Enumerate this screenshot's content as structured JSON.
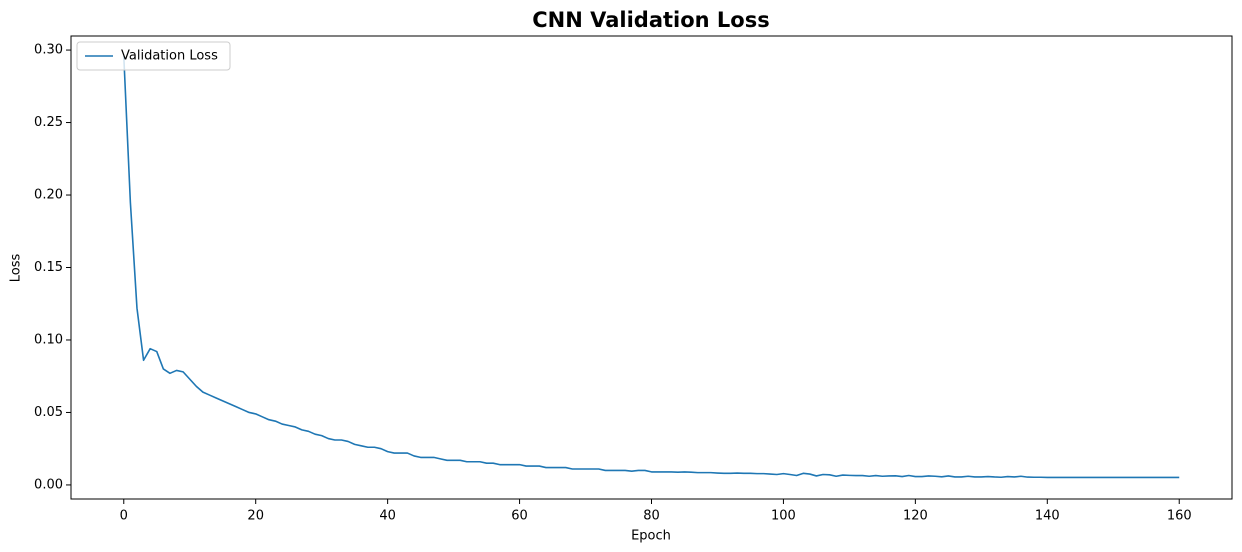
{
  "chart_data": {
    "type": "line",
    "title": "CNN Validation Loss",
    "x_label": "Epoch",
    "y_label": "Loss",
    "x": [
      0,
      1,
      2,
      3,
      4,
      5,
      6,
      7,
      8,
      9,
      10,
      11,
      12,
      13,
      14,
      15,
      16,
      17,
      18,
      19,
      20,
      21,
      22,
      23,
      24,
      25,
      26,
      27,
      28,
      29,
      30,
      31,
      32,
      33,
      34,
      35,
      36,
      37,
      38,
      39,
      40,
      41,
      42,
      43,
      44,
      45,
      46,
      47,
      48,
      49,
      50,
      51,
      52,
      53,
      54,
      55,
      56,
      57,
      58,
      59,
      60,
      61,
      62,
      63,
      64,
      65,
      66,
      67,
      68,
      69,
      70,
      71,
      72,
      73,
      74,
      75,
      76,
      77,
      78,
      79,
      80,
      81,
      82,
      83,
      84,
      85,
      86,
      87,
      88,
      89,
      90,
      91,
      92,
      93,
      94,
      95,
      96,
      97,
      98,
      99,
      100,
      101,
      102,
      103,
      104,
      105,
      106,
      107,
      108,
      109,
      110,
      111,
      112,
      113,
      114,
      115,
      116,
      117,
      118,
      119,
      120,
      121,
      122,
      123,
      124,
      125,
      126,
      127,
      128,
      129,
      130,
      131,
      132,
      133,
      134,
      135,
      136,
      137,
      138,
      139,
      140,
      141,
      142,
      143,
      144,
      145,
      146,
      147,
      148,
      149,
      150,
      151,
      152,
      153,
      154,
      155,
      156,
      157,
      158,
      159,
      160
    ],
    "series": [
      {
        "name": "Validation Loss",
        "color": "#1f77b4",
        "values": [
          0.296,
          0.195,
          0.122,
          0.086,
          0.094,
          0.092,
          0.08,
          0.077,
          0.079,
          0.078,
          0.073,
          0.068,
          0.064,
          0.062,
          0.06,
          0.058,
          0.056,
          0.054,
          0.052,
          0.05,
          0.049,
          0.047,
          0.045,
          0.044,
          0.042,
          0.041,
          0.04,
          0.038,
          0.037,
          0.035,
          0.034,
          0.032,
          0.031,
          0.031,
          0.03,
          0.028,
          0.027,
          0.026,
          0.026,
          0.025,
          0.023,
          0.022,
          0.022,
          0.022,
          0.02,
          0.019,
          0.019,
          0.019,
          0.018,
          0.017,
          0.017,
          0.017,
          0.016,
          0.016,
          0.016,
          0.015,
          0.015,
          0.014,
          0.014,
          0.014,
          0.014,
          0.013,
          0.013,
          0.013,
          0.012,
          0.012,
          0.012,
          0.012,
          0.011,
          0.011,
          0.011,
          0.011,
          0.011,
          0.01,
          0.01,
          0.01,
          0.01,
          0.0095,
          0.01,
          0.01,
          0.009,
          0.009,
          0.009,
          0.009,
          0.0088,
          0.009,
          0.0088,
          0.0085,
          0.0085,
          0.0085,
          0.0082,
          0.008,
          0.008,
          0.0082,
          0.008,
          0.008,
          0.0078,
          0.0078,
          0.0075,
          0.0072,
          0.0078,
          0.0072,
          0.0065,
          0.008,
          0.0075,
          0.0062,
          0.0072,
          0.007,
          0.006,
          0.0068,
          0.0066,
          0.0065,
          0.0065,
          0.006,
          0.0065,
          0.006,
          0.0062,
          0.0063,
          0.0058,
          0.0065,
          0.0058,
          0.0058,
          0.0062,
          0.006,
          0.0056,
          0.0062,
          0.0055,
          0.0055,
          0.006,
          0.0055,
          0.0055,
          0.0058,
          0.0055,
          0.0053,
          0.0058,
          0.0055,
          0.006,
          0.0054,
          0.0053,
          0.0053,
          0.0052,
          0.0052,
          0.0052,
          0.0052,
          0.0052,
          0.0052,
          0.0052,
          0.0052,
          0.0052,
          0.0052,
          0.0052,
          0.0052,
          0.0052,
          0.0052,
          0.0052,
          0.0052,
          0.0052,
          0.0052,
          0.0052,
          0.0052,
          0.0052
        ]
      }
    ],
    "xlim": [
      -8,
      168
    ],
    "ylim": [
      -0.0097,
      0.3097
    ],
    "xticks": [
      0,
      20,
      40,
      60,
      80,
      100,
      120,
      140,
      160
    ],
    "yticks": [
      {
        "value": 0,
        "label": "0.00"
      },
      {
        "value": 0.05,
        "label": "0.05"
      },
      {
        "value": 0.1,
        "label": "0.10"
      },
      {
        "value": 0.15,
        "label": "0.15"
      },
      {
        "value": 0.2,
        "label": "0.20"
      },
      {
        "value": 0.25,
        "label": "0.25"
      },
      {
        "value": 0.3,
        "label": "0.30"
      }
    ],
    "legend": "upper left",
    "grid": false
  }
}
